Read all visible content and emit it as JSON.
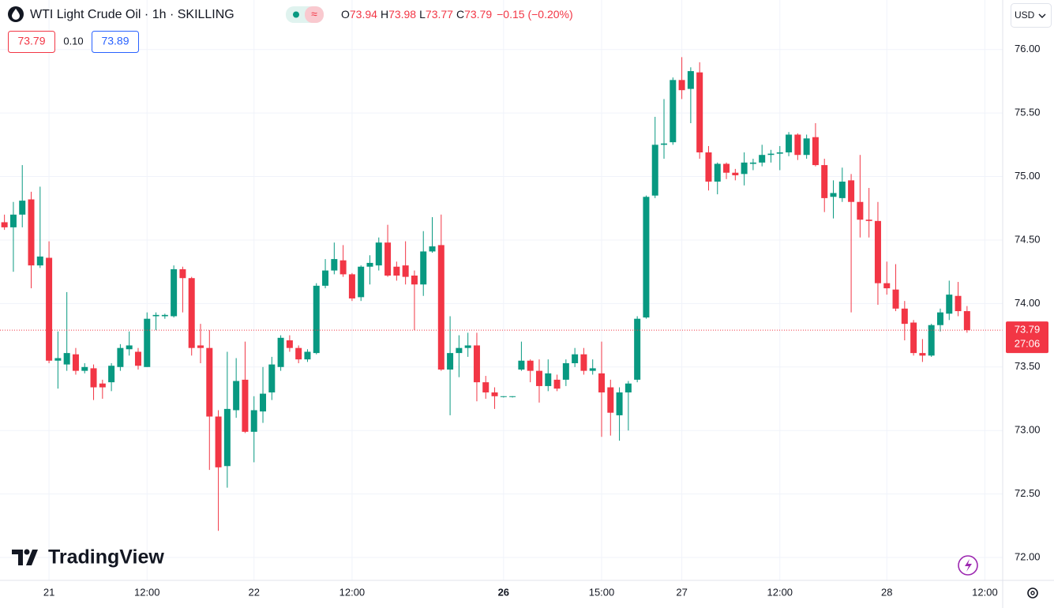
{
  "header": {
    "title": "WTI Light Crude Oil · 1h · SKILLING",
    "ohlc": [
      {
        "label": "O",
        "value": 73.94
      },
      {
        "label": "H",
        "value": 73.98
      },
      {
        "label": "L",
        "value": 73.77
      },
      {
        "label": "C",
        "value": 73.79
      }
    ],
    "change": "−0.15 (−0.20%)",
    "bid": 73.79,
    "spread": {
      "value": 0.1,
      "label": "0.10"
    },
    "ask": 73.89,
    "currency": "USD",
    "logo": "TradingView"
  },
  "chart_data": {
    "type": "candlestick",
    "up_color": "#089981",
    "down_color": "#f23645",
    "grid": true,
    "open": [
      74.64,
      74.6,
      74.7,
      74.82,
      74.3,
      74.36,
      73.55,
      73.52,
      73.6,
      73.47,
      73.49,
      73.37,
      73.38,
      73.5,
      73.64,
      73.62,
      73.5,
      73.9,
      73.9,
      73.9,
      74.27,
      74.2,
      73.67,
      73.65,
      73.11,
      72.72,
      73.16,
      73.4,
      72.99,
      73.15,
      73.3,
      73.5,
      73.71,
      73.65,
      73.56,
      73.61,
      74.14,
      74.26,
      74.34,
      74.23,
      74.05,
      74.29,
      74.3,
      74.48,
      74.29,
      74.3,
      74.22,
      74.15,
      74.41,
      74.46,
      73.48,
      73.61,
      73.65,
      73.67,
      73.38,
      73.3,
      73.27,
      73.27,
      73.48,
      73.55,
      73.47,
      73.35,
      73.4,
      73.4,
      73.53,
      73.6,
      73.47,
      73.45,
      73.34,
      73.12,
      73.3,
      73.4,
      73.89,
      74.85,
      75.25,
      75.27,
      75.76,
      75.69,
      75.82,
      75.19,
      74.96,
      75.1,
      75.03,
      75.02,
      75.1,
      75.11,
      75.17,
      75.18,
      75.19,
      75.33,
      75.17,
      75.31,
      75.09,
      74.84,
      74.83,
      74.97,
      74.8,
      74.66,
      74.65,
      74.16,
      74.11,
      73.96,
      73.85,
      73.61,
      73.59,
      73.83,
      73.92,
      74.06,
      73.94
    ],
    "high": [
      74.7,
      74.8,
      75.09,
      74.88,
      74.92,
      74.49,
      73.78,
      74.09,
      73.65,
      73.53,
      73.52,
      73.4,
      73.53,
      73.68,
      73.78,
      73.65,
      73.93,
      73.93,
      73.92,
      74.3,
      74.29,
      74.21,
      73.84,
      73.79,
      73.16,
      73.62,
      73.57,
      73.7,
      73.27,
      73.5,
      73.58,
      73.75,
      73.75,
      73.67,
      73.64,
      74.16,
      74.35,
      74.48,
      74.46,
      74.24,
      74.3,
      74.38,
      74.52,
      74.62,
      74.33,
      74.49,
      74.26,
      74.57,
      74.68,
      74.7,
      73.9,
      73.75,
      73.77,
      73.77,
      73.43,
      73.34,
      73.27,
      73.27,
      73.7,
      73.56,
      73.56,
      73.56,
      73.44,
      73.56,
      73.65,
      73.65,
      73.56,
      73.7,
      73.4,
      73.34,
      73.39,
      73.9,
      74.85,
      75.47,
      75.61,
      75.78,
      75.94,
      75.86,
      75.9,
      75.24,
      75.11,
      75.11,
      75.06,
      75.19,
      75.14,
      75.25,
      75.21,
      75.24,
      75.35,
      75.34,
      75.33,
      75.42,
      75.14,
      74.97,
      75.07,
      75.02,
      75.17,
      74.91,
      74.8,
      74.33,
      74.31,
      74.02,
      73.87,
      73.72,
      73.84,
      73.96,
      74.18,
      74.17,
      73.98
    ],
    "low": [
      74.58,
      74.25,
      74.6,
      74.12,
      74.28,
      73.53,
      73.33,
      73.47,
      73.44,
      73.45,
      73.24,
      73.25,
      73.31,
      73.47,
      73.59,
      73.48,
      73.5,
      73.79,
      73.88,
      73.89,
      73.93,
      73.59,
      73.53,
      72.69,
      72.21,
      72.55,
      73.1,
      72.98,
      72.75,
      73.06,
      73.24,
      73.47,
      73.62,
      73.53,
      73.54,
      73.6,
      74.12,
      74.23,
      74.21,
      74.02,
      74.02,
      74.15,
      74.26,
      74.21,
      74.18,
      74.15,
      73.79,
      74.06,
      74.4,
      73.47,
      73.12,
      73.42,
      73.58,
      73.23,
      73.25,
      73.17,
      73.26,
      73.26,
      73.47,
      73.38,
      73.22,
      73.31,
      73.31,
      73.35,
      73.5,
      73.44,
      73.44,
      72.95,
      72.96,
      72.92,
      73.0,
      73.38,
      73.88,
      74.83,
      75.14,
      75.25,
      75.61,
      75.42,
      75.14,
      74.89,
      74.86,
      74.98,
      74.97,
      74.93,
      75.05,
      75.08,
      75.11,
      75.05,
      75.16,
      75.13,
      75.14,
      75.08,
      74.72,
      74.67,
      74.8,
      73.93,
      74.52,
      74.52,
      73.99,
      74.07,
      73.94,
      73.71,
      73.59,
      73.54,
      73.58,
      73.78,
      73.87,
      73.9,
      73.77
    ],
    "close": [
      74.6,
      74.7,
      74.81,
      74.3,
      74.37,
      73.55,
      73.57,
      73.61,
      73.47,
      73.5,
      73.34,
      73.34,
      73.51,
      73.65,
      73.67,
      73.51,
      73.88,
      73.91,
      73.91,
      74.27,
      74.2,
      73.65,
      73.65,
      73.11,
      72.71,
      73.17,
      73.39,
      72.99,
      73.16,
      73.29,
      73.52,
      73.73,
      73.65,
      73.56,
      73.62,
      74.14,
      74.26,
      74.35,
      74.23,
      74.04,
      74.29,
      74.32,
      74.48,
      74.22,
      74.22,
      74.21,
      74.15,
      74.41,
      74.45,
      73.48,
      73.61,
      73.65,
      73.67,
      73.38,
      73.3,
      73.27,
      73.27,
      73.27,
      73.55,
      73.47,
      73.35,
      73.45,
      73.33,
      73.53,
      73.6,
      73.47,
      73.49,
      73.3,
      73.14,
      73.3,
      73.37,
      73.88,
      74.84,
      75.25,
      75.26,
      75.76,
      75.68,
      75.83,
      75.19,
      74.96,
      75.1,
      75.03,
      75.01,
      75.11,
      75.11,
      75.17,
      75.18,
      75.19,
      75.33,
      75.17,
      75.3,
      75.09,
      74.83,
      74.87,
      74.96,
      74.8,
      74.66,
      74.65,
      74.16,
      74.12,
      73.96,
      73.84,
      73.61,
      73.59,
      73.83,
      73.93,
      74.07,
      73.94,
      73.79
    ],
    "xlim": [
      -0.5,
      112
    ],
    "xticks": [
      {
        "value": 5,
        "label": "21"
      },
      {
        "value": 16,
        "label": "12:00"
      },
      {
        "value": 28,
        "label": "22"
      },
      {
        "value": 39,
        "label": "12:00"
      },
      {
        "value": 56,
        "label": "26"
      },
      {
        "value": 67,
        "label": "15:00"
      },
      {
        "value": 76,
        "label": "27"
      },
      {
        "value": 87,
        "label": "12:00"
      },
      {
        "value": 99,
        "label": "28"
      },
      {
        "value": 110,
        "label": "12:00"
      }
    ],
    "ylim": [
      71.82,
      76.39
    ],
    "yticks": [
      {
        "value": 72,
        "label": "72.00"
      },
      {
        "value": 72.5,
        "label": "72.50"
      },
      {
        "value": 73,
        "label": "73.00"
      },
      {
        "value": 73.5,
        "label": "73.50"
      },
      {
        "value": 74,
        "label": "74.00"
      },
      {
        "value": 74.5,
        "label": "74.50"
      },
      {
        "value": 75,
        "label": "75.00"
      },
      {
        "value": 75.5,
        "label": "75.50"
      },
      {
        "value": 76,
        "label": "76.00"
      }
    ],
    "last_price": {
      "value": 73.79,
      "countdown": "27:06"
    }
  }
}
